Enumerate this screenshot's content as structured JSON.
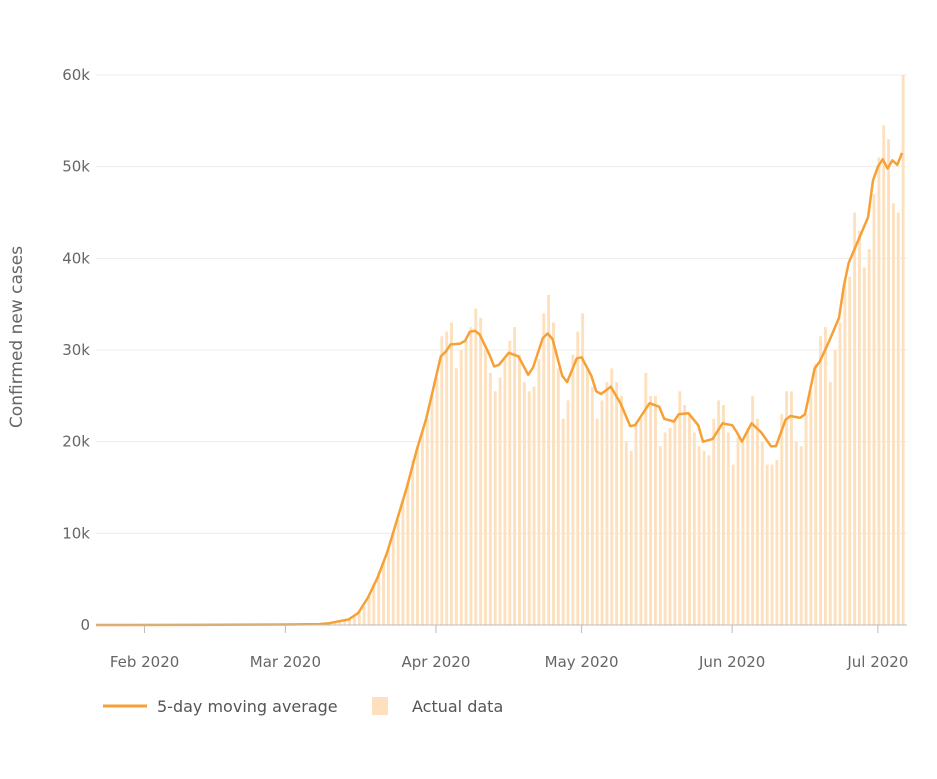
{
  "chart_data": {
    "type": "bar+line",
    "ylabel": "Confirmed new cases",
    "xlabel": "",
    "ylim": [
      0,
      60000
    ],
    "yticks": [
      {
        "value": 0,
        "label": "0"
      },
      {
        "value": 10000,
        "label": "10k"
      },
      {
        "value": 20000,
        "label": "20k"
      },
      {
        "value": 30000,
        "label": "30k"
      },
      {
        "value": 40000,
        "label": "40k"
      },
      {
        "value": 50000,
        "label": "50k"
      },
      {
        "value": 60000,
        "label": "60k"
      }
    ],
    "xticks": [
      {
        "date": "2020-02-01",
        "label": "Feb 2020"
      },
      {
        "date": "2020-03-01",
        "label": "Mar 2020"
      },
      {
        "date": "2020-04-01",
        "label": "Apr 2020"
      },
      {
        "date": "2020-05-01",
        "label": "May 2020"
      },
      {
        "date": "2020-06-01",
        "label": "Jun 2020"
      },
      {
        "date": "2020-07-01",
        "label": "Jul 2020"
      }
    ],
    "xlim": [
      "2020-01-22",
      "2020-07-07"
    ],
    "grid": true,
    "legend_position": "bottom-left",
    "series": [
      {
        "name": "5-day moving average",
        "kind": "line",
        "color": "#f7a035",
        "points": [
          [
            "2020-01-22",
            0
          ],
          [
            "2020-02-10",
            10
          ],
          [
            "2020-03-01",
            50
          ],
          [
            "2020-03-08",
            100
          ],
          [
            "2020-03-10",
            200
          ],
          [
            "2020-03-12",
            400
          ],
          [
            "2020-03-14",
            600
          ],
          [
            "2020-03-16",
            1300
          ],
          [
            "2020-03-18",
            3000
          ],
          [
            "2020-03-20",
            5200
          ],
          [
            "2020-03-22",
            8000
          ],
          [
            "2020-03-24",
            11500
          ],
          [
            "2020-03-26",
            15000
          ],
          [
            "2020-03-28",
            19000
          ],
          [
            "2020-03-30",
            22500
          ],
          [
            "2020-04-02",
            29300
          ],
          [
            "2020-04-03",
            29800
          ],
          [
            "2020-04-04",
            30600
          ],
          [
            "2020-04-06",
            30700
          ],
          [
            "2020-04-07",
            31000
          ],
          [
            "2020-04-08",
            32000
          ],
          [
            "2020-04-09",
            32100
          ],
          [
            "2020-04-10",
            31700
          ],
          [
            "2020-04-12",
            29500
          ],
          [
            "2020-04-13",
            28200
          ],
          [
            "2020-04-14",
            28400
          ],
          [
            "2020-04-16",
            29700
          ],
          [
            "2020-04-18",
            29300
          ],
          [
            "2020-04-20",
            27300
          ],
          [
            "2020-04-21",
            28100
          ],
          [
            "2020-04-23",
            31300
          ],
          [
            "2020-04-24",
            31800
          ],
          [
            "2020-04-25",
            31200
          ],
          [
            "2020-04-27",
            27200
          ],
          [
            "2020-04-28",
            26500
          ],
          [
            "2020-04-30",
            29100
          ],
          [
            "2020-05-01",
            29200
          ],
          [
            "2020-05-03",
            27200
          ],
          [
            "2020-05-04",
            25500
          ],
          [
            "2020-05-05",
            25200
          ],
          [
            "2020-05-07",
            26000
          ],
          [
            "2020-05-09",
            24200
          ],
          [
            "2020-05-11",
            21700
          ],
          [
            "2020-05-12",
            21800
          ],
          [
            "2020-05-15",
            24200
          ],
          [
            "2020-05-17",
            23800
          ],
          [
            "2020-05-18",
            22500
          ],
          [
            "2020-05-20",
            22200
          ],
          [
            "2020-05-21",
            23000
          ],
          [
            "2020-05-23",
            23100
          ],
          [
            "2020-05-25",
            21800
          ],
          [
            "2020-05-26",
            20000
          ],
          [
            "2020-05-28",
            20300
          ],
          [
            "2020-05-30",
            22000
          ],
          [
            "2020-06-01",
            21800
          ],
          [
            "2020-06-02",
            21000
          ],
          [
            "2020-06-03",
            20000
          ],
          [
            "2020-06-04",
            21000
          ],
          [
            "2020-06-05",
            22000
          ],
          [
            "2020-06-07",
            21000
          ],
          [
            "2020-06-09",
            19500
          ],
          [
            "2020-06-10",
            19500
          ],
          [
            "2020-06-12",
            22400
          ],
          [
            "2020-06-13",
            22800
          ],
          [
            "2020-06-15",
            22600
          ],
          [
            "2020-06-16",
            23000
          ],
          [
            "2020-06-18",
            28000
          ],
          [
            "2020-06-19",
            28700
          ],
          [
            "2020-06-21",
            31000
          ],
          [
            "2020-06-23",
            33500
          ],
          [
            "2020-06-24",
            37000
          ],
          [
            "2020-06-25",
            39500
          ],
          [
            "2020-06-27",
            42000
          ],
          [
            "2020-06-29",
            44500
          ],
          [
            "2020-06-30",
            48500
          ],
          [
            "2020-07-01",
            50000
          ],
          [
            "2020-07-02",
            50800
          ],
          [
            "2020-07-03",
            49800
          ],
          [
            "2020-07-04",
            50700
          ],
          [
            "2020-07-05",
            50200
          ],
          [
            "2020-07-06",
            51500
          ]
        ]
      },
      {
        "name": "Actual data",
        "kind": "bar",
        "color": "#fde1bf",
        "points": [
          [
            "2020-01-22",
            0
          ],
          [
            "2020-01-23",
            0
          ],
          [
            "2020-01-24",
            0
          ],
          [
            "2020-01-25",
            0
          ],
          [
            "2020-01-26",
            0
          ],
          [
            "2020-01-27",
            0
          ],
          [
            "2020-01-28",
            0
          ],
          [
            "2020-01-29",
            0
          ],
          [
            "2020-01-30",
            0
          ],
          [
            "2020-01-31",
            0
          ],
          [
            "2020-02-01",
            0
          ],
          [
            "2020-02-02",
            0
          ],
          [
            "2020-02-03",
            0
          ],
          [
            "2020-02-04",
            0
          ],
          [
            "2020-02-05",
            0
          ],
          [
            "2020-02-06",
            0
          ],
          [
            "2020-02-07",
            0
          ],
          [
            "2020-02-08",
            0
          ],
          [
            "2020-02-09",
            0
          ],
          [
            "2020-02-10",
            0
          ],
          [
            "2020-02-11",
            0
          ],
          [
            "2020-02-12",
            0
          ],
          [
            "2020-02-13",
            0
          ],
          [
            "2020-02-14",
            0
          ],
          [
            "2020-02-15",
            0
          ],
          [
            "2020-02-16",
            0
          ],
          [
            "2020-02-17",
            0
          ],
          [
            "2020-02-18",
            0
          ],
          [
            "2020-02-19",
            0
          ],
          [
            "2020-02-20",
            0
          ],
          [
            "2020-02-21",
            0
          ],
          [
            "2020-02-22",
            0
          ],
          [
            "2020-02-23",
            0
          ],
          [
            "2020-02-24",
            0
          ],
          [
            "2020-02-25",
            0
          ],
          [
            "2020-02-26",
            0
          ],
          [
            "2020-02-27",
            0
          ],
          [
            "2020-02-28",
            0
          ],
          [
            "2020-02-29",
            0
          ],
          [
            "2020-03-01",
            50
          ],
          [
            "2020-03-02",
            50
          ],
          [
            "2020-03-03",
            50
          ],
          [
            "2020-03-04",
            50
          ],
          [
            "2020-03-05",
            50
          ],
          [
            "2020-03-06",
            50
          ],
          [
            "2020-03-07",
            100
          ],
          [
            "2020-03-08",
            100
          ],
          [
            "2020-03-09",
            150
          ],
          [
            "2020-03-10",
            200
          ],
          [
            "2020-03-11",
            300
          ],
          [
            "2020-03-12",
            400
          ],
          [
            "2020-03-13",
            500
          ],
          [
            "2020-03-14",
            700
          ],
          [
            "2020-03-15",
            900
          ],
          [
            "2020-03-16",
            1500
          ],
          [
            "2020-03-17",
            2000
          ],
          [
            "2020-03-18",
            3200
          ],
          [
            "2020-03-19",
            4500
          ],
          [
            "2020-03-20",
            5800
          ],
          [
            "2020-03-21",
            7000
          ],
          [
            "2020-03-22",
            8500
          ],
          [
            "2020-03-23",
            10000
          ],
          [
            "2020-03-24",
            11500
          ],
          [
            "2020-03-25",
            13500
          ],
          [
            "2020-03-26",
            15500
          ],
          [
            "2020-03-27",
            18000
          ],
          [
            "2020-03-28",
            19500
          ],
          [
            "2020-03-29",
            21000
          ],
          [
            "2020-03-30",
            22500
          ],
          [
            "2020-03-31",
            25000
          ],
          [
            "2020-04-01",
            27000
          ],
          [
            "2020-04-02",
            31500
          ],
          [
            "2020-04-03",
            32000
          ],
          [
            "2020-04-04",
            33000
          ],
          [
            "2020-04-05",
            28000
          ],
          [
            "2020-04-06",
            30000
          ],
          [
            "2020-04-07",
            31000
          ],
          [
            "2020-04-08",
            32500
          ],
          [
            "2020-04-09",
            34500
          ],
          [
            "2020-04-10",
            33500
          ],
          [
            "2020-04-11",
            30000
          ],
          [
            "2020-04-12",
            27500
          ],
          [
            "2020-04-13",
            25500
          ],
          [
            "2020-04-14",
            27000
          ],
          [
            "2020-04-15",
            29000
          ],
          [
            "2020-04-16",
            31000
          ],
          [
            "2020-04-17",
            32500
          ],
          [
            "2020-04-18",
            29500
          ],
          [
            "2020-04-19",
            26500
          ],
          [
            "2020-04-20",
            25500
          ],
          [
            "2020-04-21",
            26000
          ],
          [
            "2020-04-22",
            29000
          ],
          [
            "2020-04-23",
            34000
          ],
          [
            "2020-04-24",
            36000
          ],
          [
            "2020-04-25",
            33000
          ],
          [
            "2020-04-26",
            28000
          ],
          [
            "2020-04-27",
            22500
          ],
          [
            "2020-04-28",
            24500
          ],
          [
            "2020-04-29",
            29500
          ],
          [
            "2020-04-30",
            32000
          ],
          [
            "2020-05-01",
            34000
          ],
          [
            "2020-05-02",
            28000
          ],
          [
            "2020-05-03",
            26000
          ],
          [
            "2020-05-04",
            22500
          ],
          [
            "2020-05-05",
            24500
          ],
          [
            "2020-05-06",
            26500
          ],
          [
            "2020-05-07",
            28000
          ],
          [
            "2020-05-08",
            26500
          ],
          [
            "2020-05-09",
            25000
          ],
          [
            "2020-05-10",
            20000
          ],
          [
            "2020-05-11",
            19000
          ],
          [
            "2020-05-12",
            22000
          ],
          [
            "2020-05-13",
            22500
          ],
          [
            "2020-05-14",
            27500
          ],
          [
            "2020-05-15",
            25000
          ],
          [
            "2020-05-16",
            25000
          ],
          [
            "2020-05-17",
            19500
          ],
          [
            "2020-05-18",
            21000
          ],
          [
            "2020-05-19",
            21500
          ],
          [
            "2020-05-20",
            22500
          ],
          [
            "2020-05-21",
            25500
          ],
          [
            "2020-05-22",
            24000
          ],
          [
            "2020-05-23",
            23000
          ],
          [
            "2020-05-24",
            21000
          ],
          [
            "2020-05-25",
            19500
          ],
          [
            "2020-05-26",
            19000
          ],
          [
            "2020-05-27",
            18500
          ],
          [
            "2020-05-28",
            22500
          ],
          [
            "2020-05-29",
            24500
          ],
          [
            "2020-05-30",
            24000
          ],
          [
            "2020-05-31",
            21000
          ],
          [
            "2020-06-01",
            17500
          ],
          [
            "2020-06-02",
            20500
          ],
          [
            "2020-06-03",
            20000
          ],
          [
            "2020-06-04",
            21500
          ],
          [
            "2020-06-05",
            25000
          ],
          [
            "2020-06-06",
            22500
          ],
          [
            "2020-06-07",
            20000
          ],
          [
            "2020-06-08",
            17500
          ],
          [
            "2020-06-09",
            17500
          ],
          [
            "2020-06-10",
            18000
          ],
          [
            "2020-06-11",
            23000
          ],
          [
            "2020-06-12",
            25500
          ],
          [
            "2020-06-13",
            25500
          ],
          [
            "2020-06-14",
            20000
          ],
          [
            "2020-06-15",
            19500
          ],
          [
            "2020-06-16",
            23000
          ],
          [
            "2020-06-17",
            25500
          ],
          [
            "2020-06-18",
            28500
          ],
          [
            "2020-06-19",
            31500
          ],
          [
            "2020-06-20",
            32500
          ],
          [
            "2020-06-21",
            26500
          ],
          [
            "2020-06-22",
            30000
          ],
          [
            "2020-06-23",
            33000
          ],
          [
            "2020-06-24",
            37500
          ],
          [
            "2020-06-25",
            38000
          ],
          [
            "2020-06-26",
            45000
          ],
          [
            "2020-06-27",
            43000
          ],
          [
            "2020-06-28",
            39000
          ],
          [
            "2020-06-29",
            41000
          ],
          [
            "2020-06-30",
            47000
          ],
          [
            "2020-07-01",
            51000
          ],
          [
            "2020-07-02",
            54500
          ],
          [
            "2020-07-03",
            53000
          ],
          [
            "2020-07-04",
            46000
          ],
          [
            "2020-07-05",
            45000
          ],
          [
            "2020-07-06",
            60000
          ]
        ]
      }
    ]
  }
}
